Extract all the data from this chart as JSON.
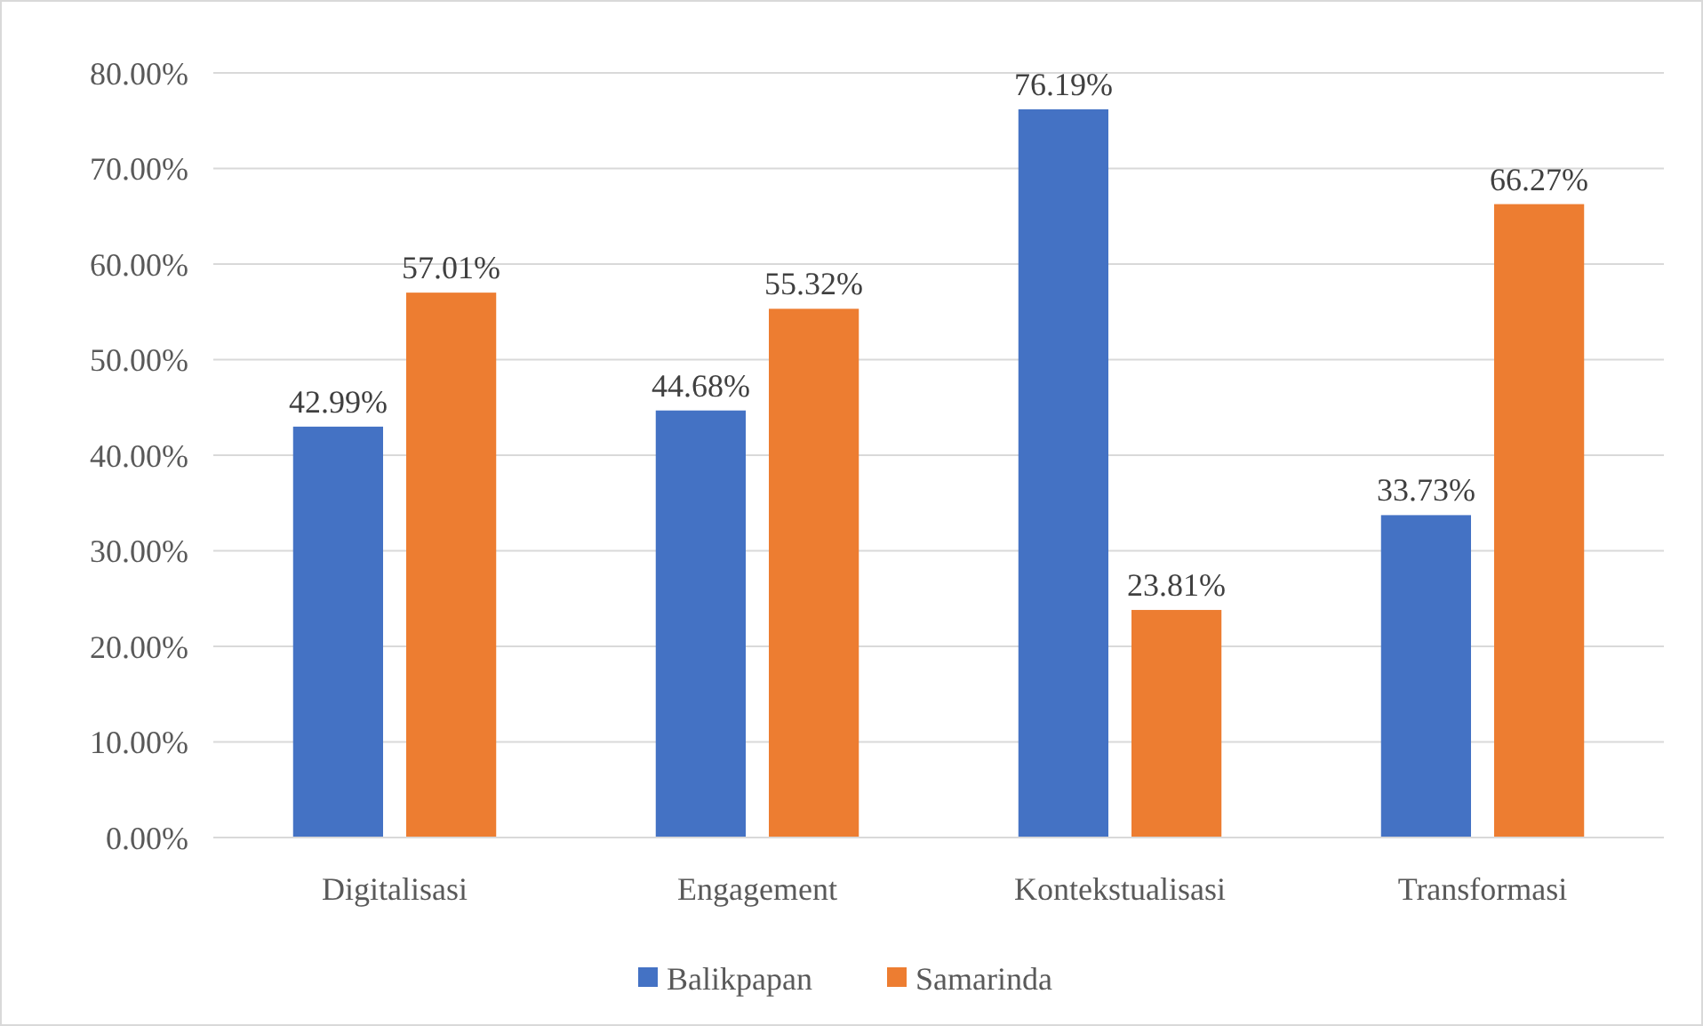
{
  "chart_data": {
    "type": "bar",
    "categories": [
      "Digitalisasi",
      "Engagement",
      "Kontekstualisasi",
      "Transformasi"
    ],
    "series": [
      {
        "name": "Balikpapan",
        "color": "#4472c4",
        "values": [
          42.99,
          44.68,
          76.19,
          33.73
        ],
        "value_labels": [
          "42.99%",
          "44.68%",
          "76.19%",
          "33.73%"
        ]
      },
      {
        "name": "Samarinda",
        "color": "#ed7d31",
        "values": [
          57.01,
          55.32,
          23.81,
          66.27
        ],
        "value_labels": [
          "57.01%",
          "55.32%",
          "23.81%",
          "66.27%"
        ]
      }
    ],
    "ylim": [
      0,
      80
    ],
    "yticks": [
      {
        "value": 0,
        "label": "0.00%"
      },
      {
        "value": 10,
        "label": "10.00%"
      },
      {
        "value": 20,
        "label": "20.00%"
      },
      {
        "value": 30,
        "label": "30.00%"
      },
      {
        "value": 40,
        "label": "40.00%"
      },
      {
        "value": 50,
        "label": "50.00%"
      },
      {
        "value": 60,
        "label": "60.00%"
      },
      {
        "value": 70,
        "label": "70.00%"
      },
      {
        "value": 80,
        "label": "80.00%"
      }
    ],
    "grid": "y",
    "legend": "bottom"
  }
}
